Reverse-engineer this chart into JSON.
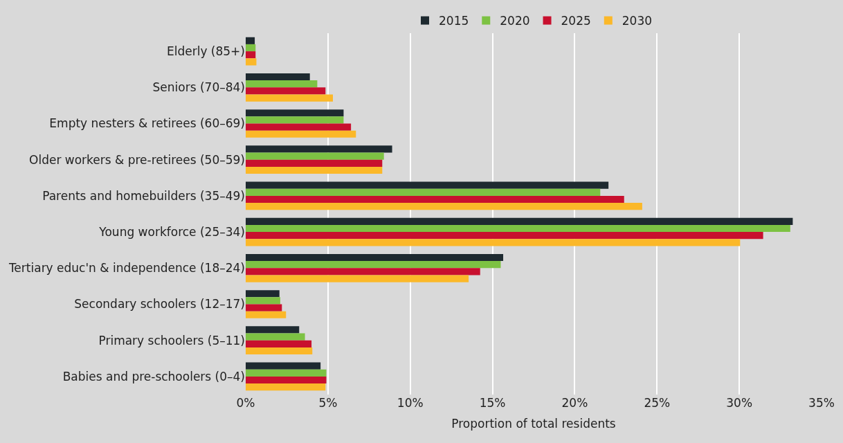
{
  "chart_data": {
    "type": "bar",
    "orientation": "horizontal",
    "xlabel": "Proportion of total residents",
    "categories": [
      "Elderly (85+)",
      "Seniors (70–84)",
      "Empty nesters & retirees (60–69)",
      "Older workers & pre-retirees (50–59)",
      "Parents and homebuilders (35–49)",
      "Young workforce (25–34)",
      "Tertiary educ'n & independence (18–24)",
      "Secondary schoolers (12–17)",
      "Primary schoolers (5–11)",
      "Babies and pre-schoolers (0–4)"
    ],
    "series": [
      {
        "name": "2015",
        "color": "#1e2a30",
        "values": [
          0.55,
          3.9,
          5.95,
          8.9,
          22.05,
          33.25,
          15.65,
          2.05,
          3.25,
          4.55
        ]
      },
      {
        "name": "2020",
        "color": "#7dc243",
        "values": [
          0.6,
          4.35,
          5.95,
          8.4,
          21.55,
          33.1,
          15.5,
          2.1,
          3.6,
          4.9
        ]
      },
      {
        "name": "2025",
        "color": "#c8102e",
        "values": [
          0.6,
          4.85,
          6.4,
          8.3,
          23.0,
          31.45,
          14.25,
          2.2,
          4.0,
          4.9
        ]
      },
      {
        "name": "2030",
        "color": "#fbb829",
        "values": [
          0.65,
          5.3,
          6.7,
          8.3,
          24.1,
          30.05,
          13.55,
          2.45,
          4.05,
          4.85
        ]
      }
    ],
    "xlim": [
      0,
      35
    ],
    "xticks": [
      {
        "value": 0,
        "label": "0%"
      },
      {
        "value": 5,
        "label": "5%"
      },
      {
        "value": 10,
        "label": "10%"
      },
      {
        "value": 15,
        "label": "15%"
      },
      {
        "value": 20,
        "label": "20%"
      },
      {
        "value": 25,
        "label": "25%"
      },
      {
        "value": 30,
        "label": "30%"
      },
      {
        "value": 35,
        "label": "35%"
      }
    ],
    "grid": "x",
    "legend": "top"
  }
}
